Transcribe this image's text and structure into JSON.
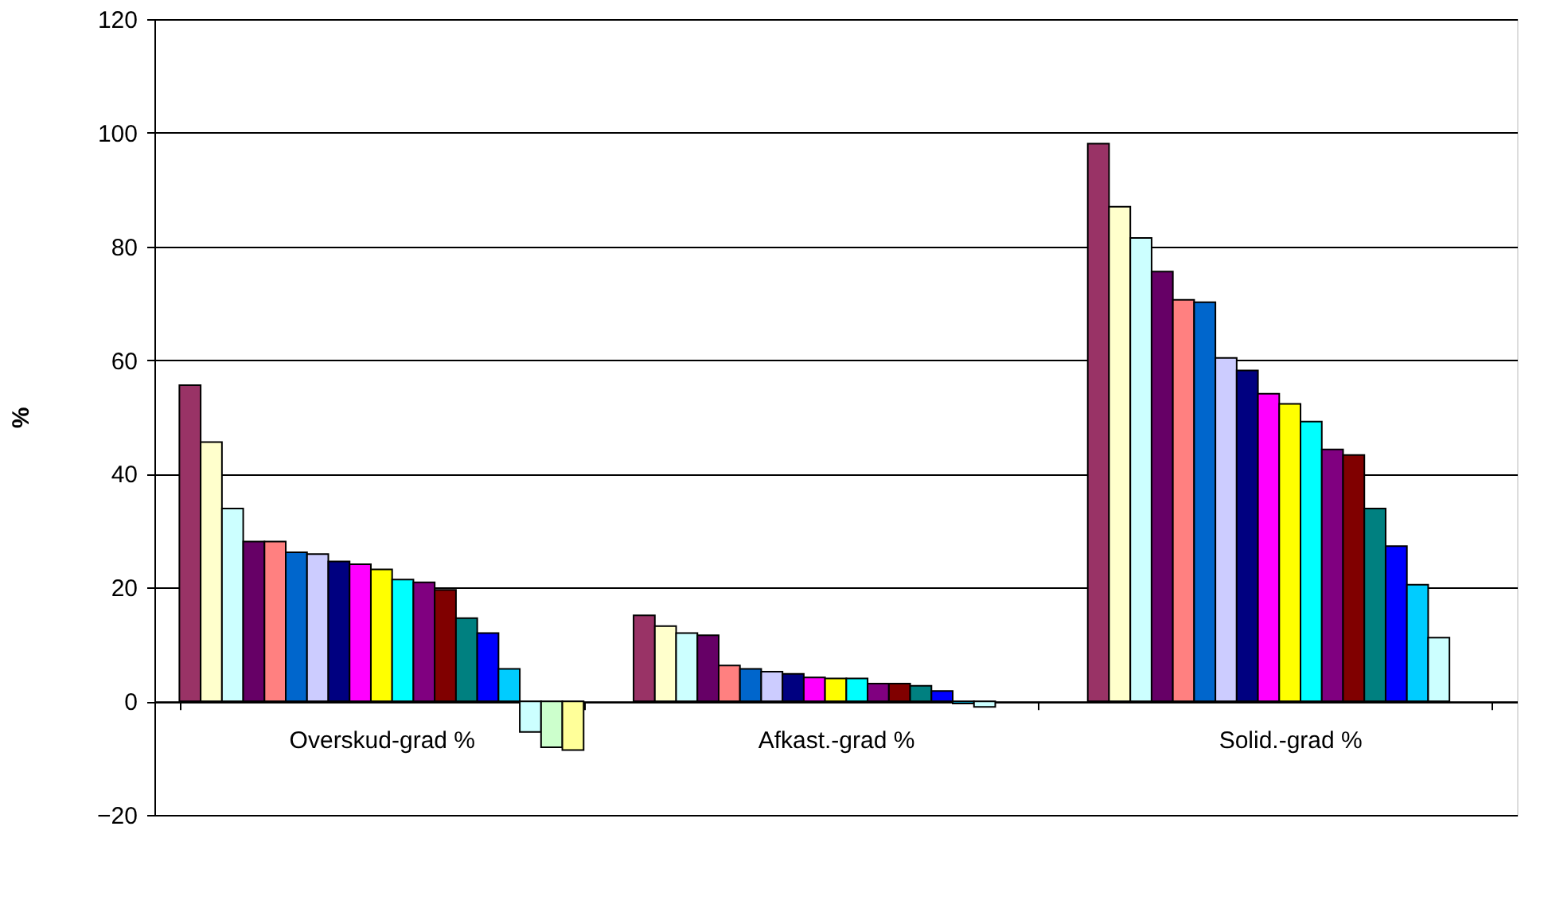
{
  "chart_data": {
    "type": "bar",
    "ylabel": "%",
    "categories": [
      "Overskud-grad %",
      "Afkast.-grad %",
      "Solid.-grad %"
    ],
    "ylim": [
      -20,
      120
    ],
    "yticks": [
      -20,
      0,
      20,
      40,
      60,
      80,
      100,
      120
    ],
    "grid": "y",
    "legend": false,
    "series": [
      {
        "color": "#993366",
        "values": [
          55.6,
          15.1,
          98.1
        ]
      },
      {
        "color": "#ffffcc",
        "values": [
          45.6,
          13.2,
          87.0
        ]
      },
      {
        "color": "#ccffff",
        "values": [
          33.9,
          12.0,
          81.5
        ]
      },
      {
        "color": "#660066",
        "values": [
          28.1,
          11.6,
          75.6
        ]
      },
      {
        "color": "#ff8080",
        "values": [
          28.1,
          6.3,
          70.6
        ]
      },
      {
        "color": "#0066cc",
        "values": [
          26.2,
          5.7,
          70.2
        ]
      },
      {
        "color": "#ccccff",
        "values": [
          25.9,
          5.2,
          60.4
        ]
      },
      {
        "color": "#000080",
        "values": [
          24.6,
          4.8,
          58.2
        ]
      },
      {
        "color": "#ff00ff",
        "values": [
          24.1,
          4.2,
          54.1
        ]
      },
      {
        "color": "#ffff00",
        "values": [
          23.2,
          4.0,
          52.3
        ]
      },
      {
        "color": "#00ffff",
        "values": [
          21.4,
          4.0,
          49.2
        ]
      },
      {
        "color": "#800080",
        "values": [
          20.9,
          3.1,
          44.3
        ]
      },
      {
        "color": "#800000",
        "values": [
          19.6,
          3.1,
          43.3
        ]
      },
      {
        "color": "#008080",
        "values": [
          14.6,
          2.7,
          33.9
        ]
      },
      {
        "color": "#0000ff",
        "values": [
          12.0,
          1.8,
          27.3
        ]
      },
      {
        "color": "#00ccff",
        "values": [
          5.7,
          -0.4,
          20.5
        ]
      },
      {
        "color": "#ccffff",
        "values": [
          -5.4,
          -1.0,
          11.2
        ]
      },
      {
        "color": "#ccffcc",
        "values": [
          -8.1,
          null,
          null
        ]
      },
      {
        "color": "#ffff99",
        "values": [
          -8.6,
          null,
          null
        ]
      }
    ]
  }
}
